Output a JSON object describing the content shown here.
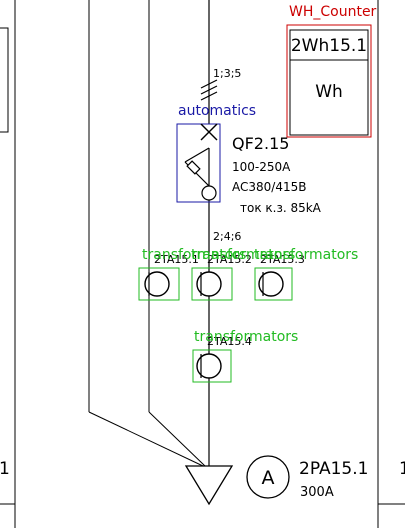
{
  "overlays": {
    "wh_counter": "WH_Counter",
    "automatics": "automatics",
    "transformators_top_1": "transformators",
    "transformators_top_2": "transformators",
    "transformators_top_3": "transformators",
    "transformators_bottom": "transformators"
  },
  "meter": {
    "id": "2Wh15.1",
    "unit": "Wh"
  },
  "breaker": {
    "top_terminals": "1;3;5",
    "id": "QF2.15",
    "rating": "100-250A",
    "voltage": "AC380/415B",
    "short_circuit": "ток к.з. 85kA",
    "bottom_terminals": "2;4;6"
  },
  "current_transformers": {
    "ct1": "2TA15.1",
    "ct2": "2TA15.2",
    "ct3": "2TA15.3",
    "ct4": "2TA15.4"
  },
  "ammeter": {
    "symbol": "A",
    "id": "2PA15.1",
    "rating": "300A"
  },
  "edge_labels": {
    "left_bottom": "1",
    "right_bottom": "1"
  },
  "colors": {
    "line": "#000000",
    "wh_overlay": "#cc0000",
    "automatics_overlay": "#1a1aa6",
    "transformer_overlay": "#22bb22"
  }
}
